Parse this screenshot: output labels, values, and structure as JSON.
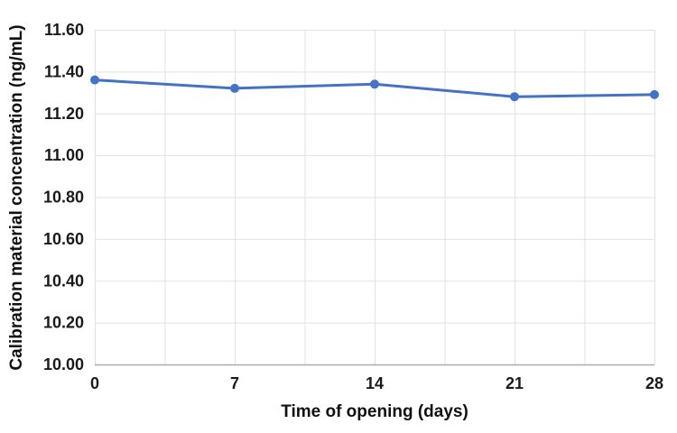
{
  "figure": {
    "background": "#ffffff"
  },
  "chart_data": {
    "type": "line",
    "title": "",
    "xlabel": "Time of opening (days)",
    "ylabel": "Calibration material concentration (ng/mL)",
    "x": [
      0,
      7,
      14,
      21,
      28
    ],
    "series": [
      {
        "name": "Calibration material concentration (ng/mL)",
        "color": "#4472C4",
        "marker": "circle",
        "values": [
          11.36,
          11.32,
          11.34,
          11.28,
          11.29
        ]
      }
    ],
    "xlim": [
      0,
      28
    ],
    "ylim": [
      10.0,
      11.6
    ],
    "x_ticks": [
      0,
      7,
      14,
      21,
      28
    ],
    "x_tick_labels": [
      "0",
      "7",
      "14",
      "21",
      "28"
    ],
    "x_gridline_step": 3.5,
    "y_ticks": [
      10.0,
      10.2,
      10.4,
      10.6,
      10.8,
      11.0,
      11.2,
      11.4,
      11.6
    ],
    "y_tick_labels": [
      "10.00",
      "10.20",
      "10.40",
      "10.60",
      "10.80",
      "11.00",
      "11.20",
      "11.40",
      "11.60"
    ],
    "grid": "both",
    "legend": "none",
    "colors": {
      "line": "#4472C4",
      "gridline": "#E2E2E2",
      "axis_line": "#ACACAC",
      "tick_text": "#1a1a1a",
      "title_text": "#111111"
    }
  }
}
